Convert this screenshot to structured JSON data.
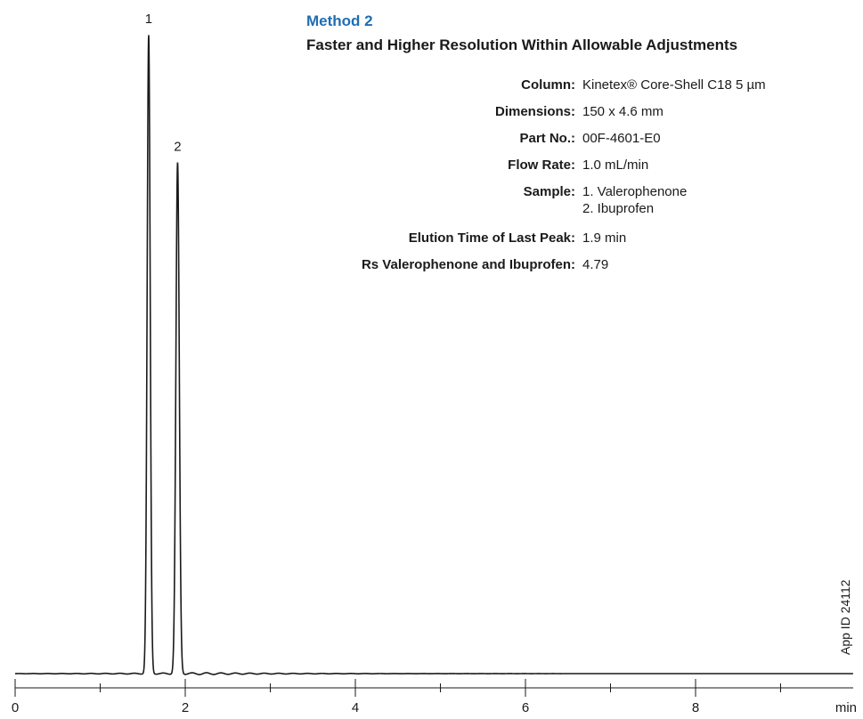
{
  "header": {
    "title": "Method 2",
    "subtitle": "Faster and Higher Resolution Within Allowable Adjustments"
  },
  "params": {
    "column_label": "Column:",
    "column_value": "Kinetex® Core-Shell C18 5 µm",
    "dimensions_label": "Dimensions:",
    "dimensions_value": "150 x 4.6 mm",
    "partno_label": "Part No.:",
    "partno_value": "00F-4601-E0",
    "flow_label": "Flow Rate:",
    "flow_value": "1.0 mL/min",
    "sample_label": "Sample:",
    "sample_values": [
      "1. Valerophenone",
      "2. Ibuprofen"
    ],
    "elution_label": "Elution Time of Last Peak:",
    "elution_value": "1.9 min",
    "rs_label": "Rs Valerophenone and Ibuprofen:",
    "rs_value": "4.79"
  },
  "app_id": "App ID 24112",
  "chart_data": {
    "type": "line",
    "xlabel": "min",
    "ylabel": "",
    "xlim": [
      0,
      10
    ],
    "ylim": [
      0,
      100
    ],
    "major_ticks": [
      0,
      2,
      4,
      6,
      8
    ],
    "minor_ticks": [
      1,
      3,
      5,
      7,
      9
    ],
    "tick_labels": [
      "0",
      "2",
      "4",
      "6",
      "8"
    ],
    "grid": false,
    "baseline": 0,
    "peaks": [
      {
        "label": "1",
        "time": 1.57,
        "height": 100,
        "width": 0.018
      },
      {
        "label": "2",
        "time": 1.91,
        "height": 80,
        "width": 0.02
      }
    ]
  }
}
